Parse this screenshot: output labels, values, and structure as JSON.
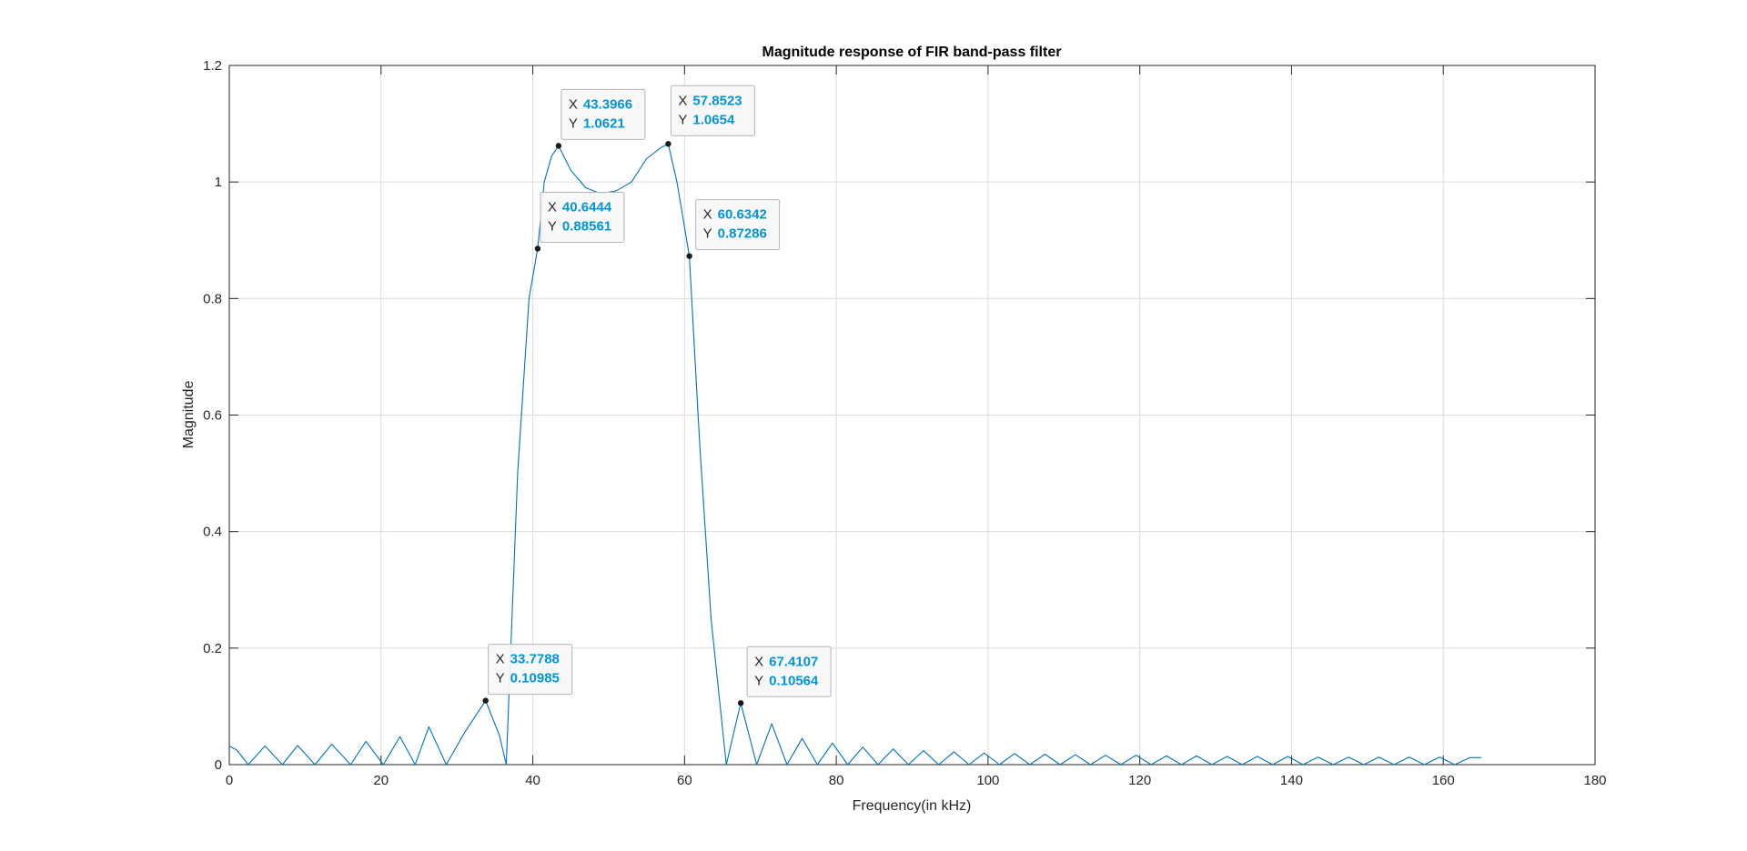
{
  "chart_data": {
    "type": "line",
    "title": "Magnitude response of FIR band-pass filter",
    "xlabel": "Frequency(in kHz)",
    "ylabel": "Magnitude",
    "xlim": [
      0,
      180
    ],
    "ylim": [
      0,
      1.2
    ],
    "xticks": [
      0,
      20,
      40,
      60,
      80,
      100,
      120,
      140,
      160,
      180
    ],
    "yticks": [
      0,
      0.2,
      0.4,
      0.6,
      0.8,
      1,
      1.2
    ],
    "xtick_labels": [
      "0",
      "20",
      "40",
      "60",
      "80",
      "100",
      "120",
      "140",
      "160",
      "180"
    ],
    "ytick_labels": [
      "0",
      "0.2",
      "0.4",
      "0.6",
      "0.8",
      "1",
      "1.2"
    ],
    "grid": true,
    "colors": {
      "line": "#0072BD",
      "datatip_value": "#0095d9",
      "grid": "#dcdcdc"
    },
    "series": [
      {
        "x": [
          0,
          1,
          2.5,
          4.7,
          7,
          9,
          11.3,
          13.5,
          16,
          18,
          20.3,
          22.5,
          24.5,
          26.3,
          28.6,
          31,
          33.78,
          35.6,
          36.5,
          38,
          39.5,
          40.64,
          41.5,
          42.5,
          43.4,
          45,
          47,
          49,
          51,
          53,
          55,
          57,
          57.85,
          59,
          60.63,
          62,
          63.5,
          65.5,
          67.41,
          69.5,
          71.5,
          73.5,
          75.5,
          77.5,
          79.5,
          81.5,
          83.5,
          85.5,
          87.5,
          89.5,
          91.5,
          93.5,
          95.5,
          97.5,
          99.5,
          101.5,
          103.5,
          105.5,
          107.5,
          109.5,
          111.5,
          113.5,
          115.5,
          117.5,
          119.5,
          121.5,
          123.5,
          125.5,
          127.5,
          129.5,
          131.5,
          133.5,
          135.5,
          137.5,
          139.5,
          141.5,
          143.5,
          145.5,
          147.5,
          149.5,
          151.5,
          153.5,
          155.5,
          157.5,
          159.5,
          161.5,
          163.5,
          165
        ],
        "y": [
          0.032,
          0.025,
          0.0,
          0.032,
          0.0,
          0.033,
          0.0,
          0.035,
          0.0,
          0.04,
          0.0,
          0.048,
          0.0,
          0.065,
          0.0,
          0.055,
          0.10985,
          0.05,
          0.0,
          0.5,
          0.8,
          0.88561,
          1.0,
          1.045,
          1.0621,
          1.02,
          0.99,
          0.98,
          0.985,
          1.0,
          1.04,
          1.06,
          1.0654,
          1.0,
          0.87286,
          0.55,
          0.25,
          0.0,
          0.10564,
          0.0,
          0.07,
          0.0,
          0.045,
          0.0,
          0.037,
          0.0,
          0.03,
          0.0,
          0.027,
          0.0,
          0.024,
          0.0,
          0.022,
          0.0,
          0.02,
          0.0,
          0.019,
          0.0,
          0.018,
          0.0,
          0.017,
          0.0,
          0.016,
          0.0,
          0.016,
          0.0,
          0.015,
          0.0,
          0.015,
          0.0,
          0.014,
          0.0,
          0.014,
          0.0,
          0.014,
          0.0,
          0.013,
          0.0,
          0.013,
          0.0,
          0.013,
          0.0,
          0.013,
          0.0,
          0.013,
          0.0,
          0.012,
          0.012
        ]
      }
    ],
    "datatips": [
      {
        "x": 43.3966,
        "y": 1.0621,
        "x_label": "X",
        "y_label": "Y",
        "x_text": "43.3966",
        "y_text": "1.0621"
      },
      {
        "x": 57.8523,
        "y": 1.0654,
        "x_label": "X",
        "y_label": "Y",
        "x_text": "57.8523",
        "y_text": "1.0654"
      },
      {
        "x": 40.6444,
        "y": 0.88561,
        "x_label": "X",
        "y_label": "Y",
        "x_text": "40.6444",
        "y_text": "0.88561"
      },
      {
        "x": 60.6342,
        "y": 0.87286,
        "x_label": "X",
        "y_label": "Y",
        "x_text": "60.6342",
        "y_text": "0.87286"
      },
      {
        "x": 33.7788,
        "y": 0.10985,
        "x_label": "X",
        "y_label": "Y",
        "x_text": "33.7788",
        "y_text": "0.10985"
      },
      {
        "x": 67.4107,
        "y": 0.10564,
        "x_label": "X",
        "y_label": "Y",
        "x_text": "67.4107",
        "y_text": "0.10564"
      }
    ]
  }
}
